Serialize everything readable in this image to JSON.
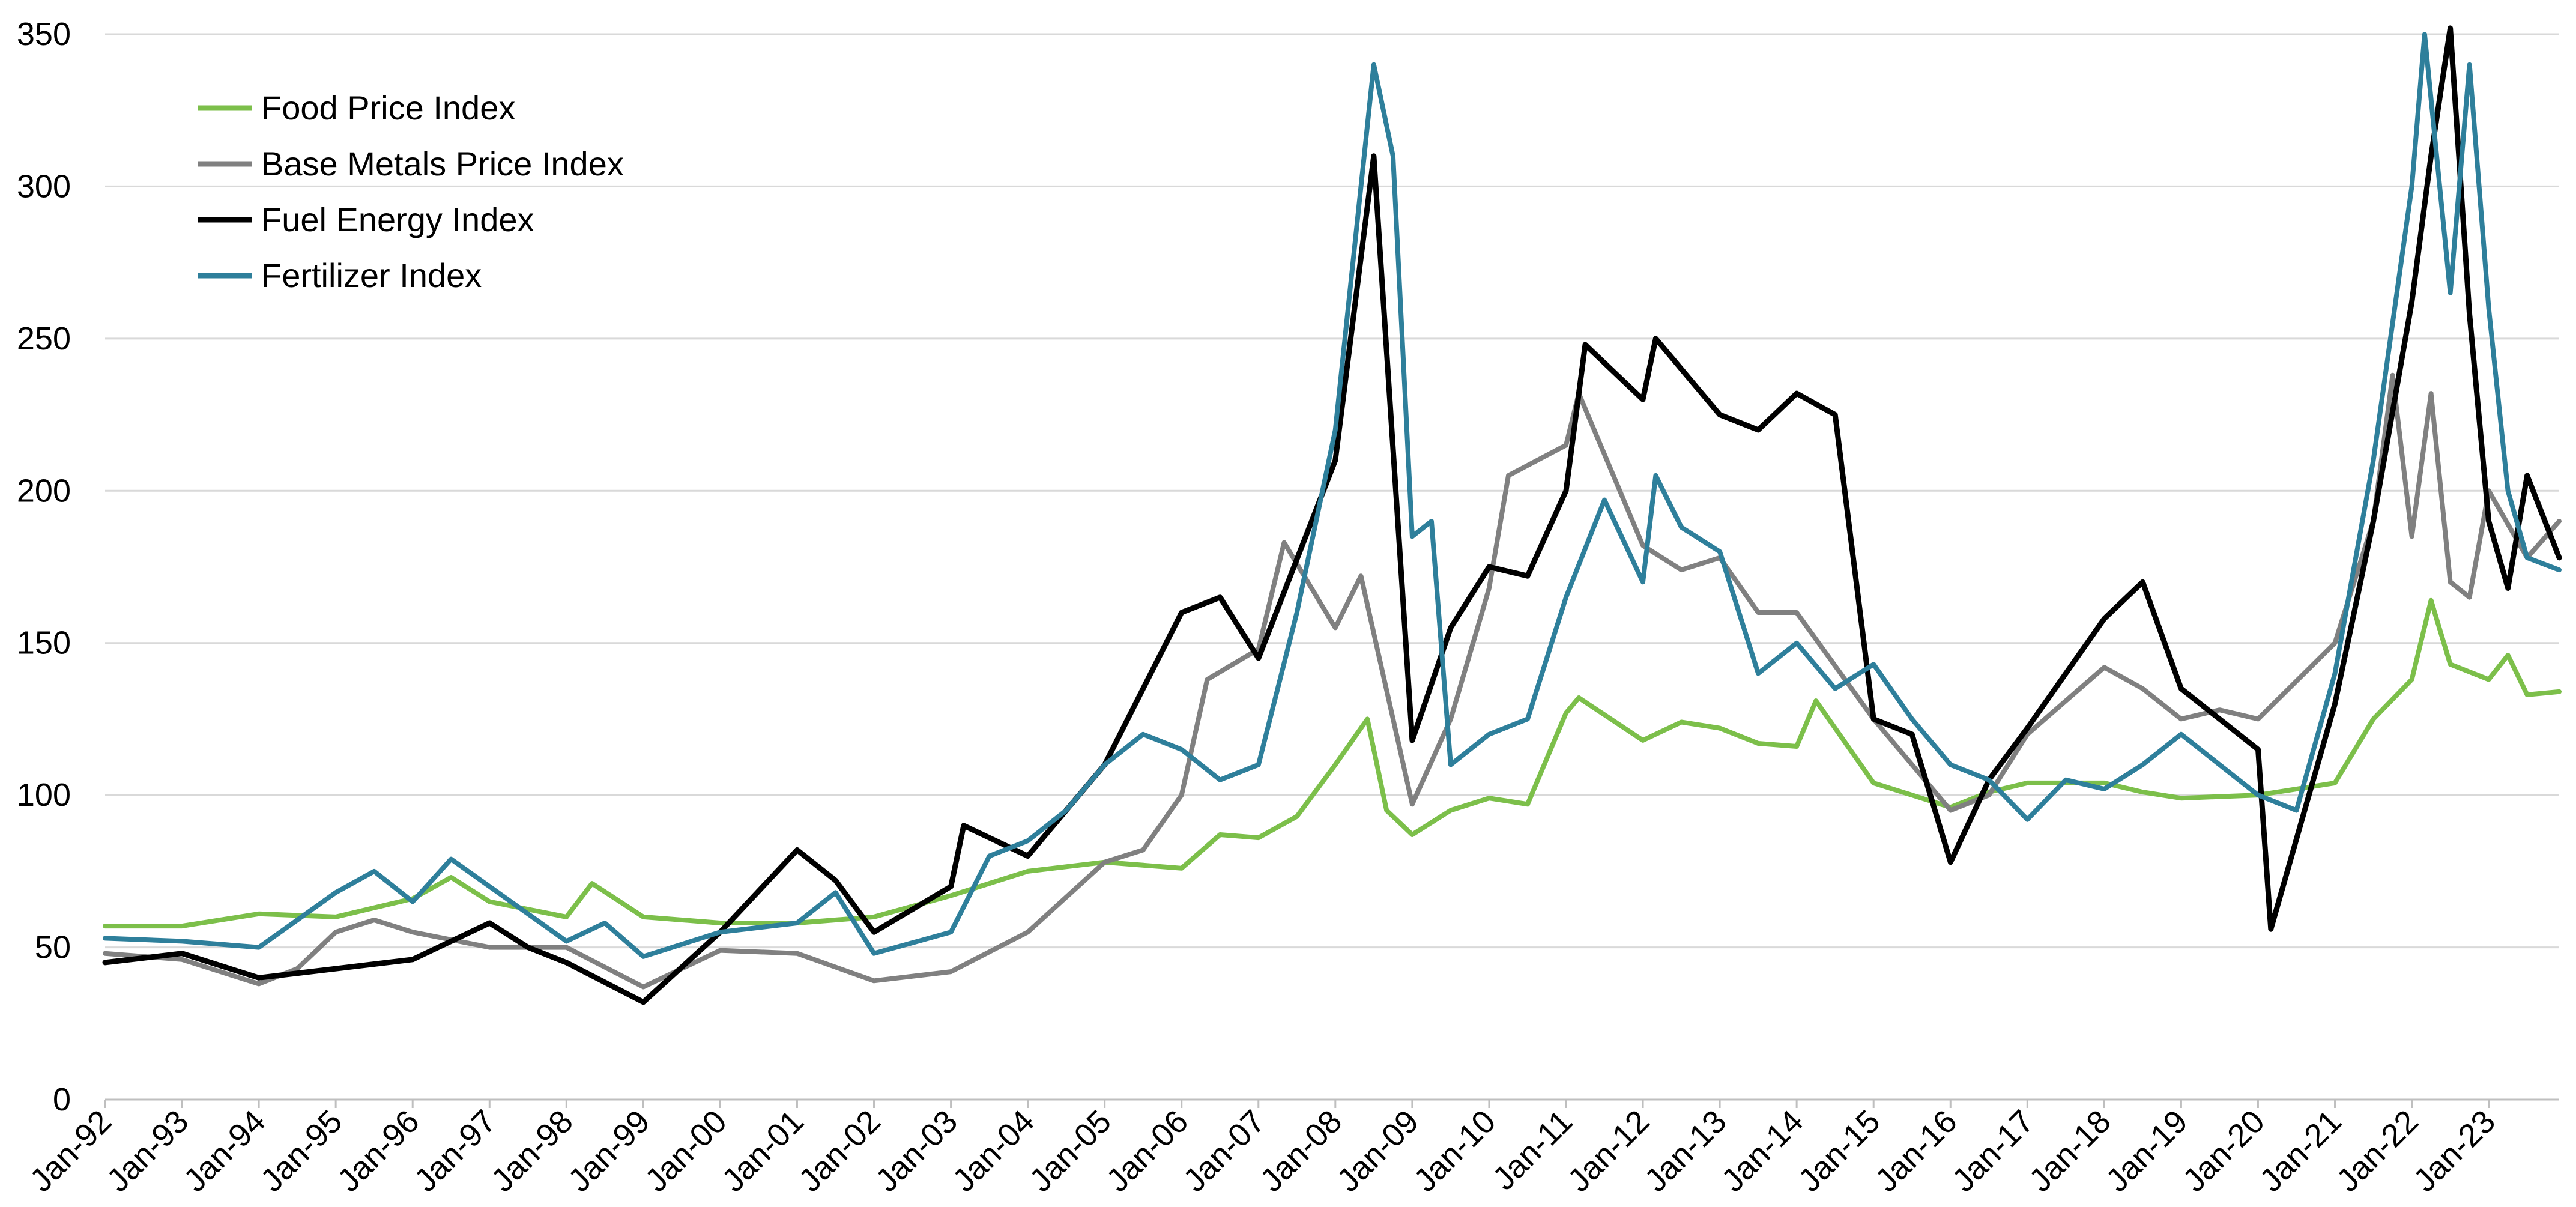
{
  "chart_data": {
    "type": "line",
    "title": "",
    "xlabel": "",
    "ylabel": "",
    "ylim": [
      0,
      350
    ],
    "yticks": [
      0,
      50,
      100,
      150,
      200,
      250,
      300,
      350
    ],
    "x_tick_labels": [
      "Jan-92",
      "Jan-93",
      "Jan-94",
      "Jan-95",
      "Jan-96",
      "Jan-97",
      "Jan-98",
      "Jan-99",
      "Jan-00",
      "Jan-01",
      "Jan-02",
      "Jan-03",
      "Jan-04",
      "Jan-05",
      "Jan-06",
      "Jan-07",
      "Jan-08",
      "Jan-09",
      "Jan-10",
      "Jan-11",
      "Jan-12",
      "Jan-13",
      "Jan-14",
      "Jan-15",
      "Jan-16",
      "Jan-17",
      "Jan-18",
      "Jan-19",
      "Jan-20",
      "Jan-21",
      "Jan-22",
      "Jan-23"
    ],
    "x_range": [
      "Jan-92",
      "Dec-23"
    ],
    "grid": "horizontal",
    "legend_position": "top-left",
    "series": [
      {
        "name": "Food Price Index",
        "color": "#7cbf4a",
        "points": [
          [
            "Jan-92",
            57
          ],
          [
            "Jan-93",
            57
          ],
          [
            "Jan-94",
            61
          ],
          [
            "Jan-95",
            60
          ],
          [
            "Jan-96",
            66
          ],
          [
            "Jul-96",
            73
          ],
          [
            "Jan-97",
            65
          ],
          [
            "Jan-98",
            60
          ],
          [
            "May-98",
            71
          ],
          [
            "Jan-99",
            60
          ],
          [
            "Jan-00",
            58
          ],
          [
            "Jan-01",
            58
          ],
          [
            "Jan-02",
            60
          ],
          [
            "Jan-03",
            67
          ],
          [
            "Jan-04",
            75
          ],
          [
            "Jan-05",
            78
          ],
          [
            "Jan-06",
            76
          ],
          [
            "Jul-06",
            87
          ],
          [
            "Jan-07",
            86
          ],
          [
            "Jul-07",
            93
          ],
          [
            "Jan-08",
            110
          ],
          [
            "Jun-08",
            125
          ],
          [
            "Sep-08",
            95
          ],
          [
            "Jan-09",
            87
          ],
          [
            "Jul-09",
            95
          ],
          [
            "Jan-10",
            99
          ],
          [
            "Jul-10",
            97
          ],
          [
            "Jan-11",
            127
          ],
          [
            "Mar-11",
            132
          ],
          [
            "Jan-12",
            118
          ],
          [
            "Jul-12",
            124
          ],
          [
            "Jan-13",
            122
          ],
          [
            "Jul-13",
            117
          ],
          [
            "Jan-14",
            116
          ],
          [
            "Apr-14",
            131
          ],
          [
            "Jan-15",
            104
          ],
          [
            "Jan-16",
            96
          ],
          [
            "Jul-16",
            101
          ],
          [
            "Jan-17",
            104
          ],
          [
            "Jan-18",
            104
          ],
          [
            "Jul-18",
            101
          ],
          [
            "Jan-19",
            99
          ],
          [
            "Jan-20",
            100
          ],
          [
            "Jan-21",
            104
          ],
          [
            "Jul-21",
            125
          ],
          [
            "Jan-22",
            138
          ],
          [
            "Apr-22",
            164
          ],
          [
            "Jul-22",
            143
          ],
          [
            "Jan-23",
            138
          ],
          [
            "Apr-23",
            146
          ],
          [
            "Jul-23",
            133
          ],
          [
            "Dec-23",
            134
          ]
        ]
      },
      {
        "name": "Base Metals Price Index",
        "color": "#808080",
        "points": [
          [
            "Jan-92",
            48
          ],
          [
            "Jan-93",
            46
          ],
          [
            "Jan-94",
            38
          ],
          [
            "Jul-94",
            43
          ],
          [
            "Jan-95",
            55
          ],
          [
            "Jul-95",
            59
          ],
          [
            "Jan-96",
            55
          ],
          [
            "Jan-97",
            50
          ],
          [
            "Jan-98",
            50
          ],
          [
            "Jan-99",
            37
          ],
          [
            "Jan-00",
            49
          ],
          [
            "Jan-01",
            48
          ],
          [
            "Jan-02",
            39
          ],
          [
            "Jan-03",
            42
          ],
          [
            "Jan-04",
            55
          ],
          [
            "Jan-05",
            78
          ],
          [
            "Jul-05",
            82
          ],
          [
            "Jan-06",
            100
          ],
          [
            "May-06",
            138
          ],
          [
            "Jan-07",
            148
          ],
          [
            "May-07",
            183
          ],
          [
            "Jan-08",
            155
          ],
          [
            "May-08",
            172
          ],
          [
            "Jan-09",
            97
          ],
          [
            "Jul-09",
            125
          ],
          [
            "Jan-10",
            168
          ],
          [
            "Apr-10",
            205
          ],
          [
            "Jan-11",
            215
          ],
          [
            "Mar-11",
            232
          ],
          [
            "Jan-12",
            182
          ],
          [
            "Jul-12",
            174
          ],
          [
            "Jan-13",
            178
          ],
          [
            "Jul-13",
            160
          ],
          [
            "Jan-14",
            160
          ],
          [
            "Jan-15",
            125
          ],
          [
            "Jan-16",
            95
          ],
          [
            "Jul-16",
            100
          ],
          [
            "Jan-17",
            120
          ],
          [
            "Jan-18",
            142
          ],
          [
            "Jul-18",
            135
          ],
          [
            "Jan-19",
            125
          ],
          [
            "Jul-19",
            128
          ],
          [
            "Jan-20",
            125
          ],
          [
            "Jan-21",
            150
          ],
          [
            "Jul-21",
            190
          ],
          [
            "Oct-21",
            238
          ],
          [
            "Jan-22",
            185
          ],
          [
            "Apr-22",
            232
          ],
          [
            "Jul-22",
            170
          ],
          [
            "Oct-22",
            165
          ],
          [
            "Jan-23",
            200
          ],
          [
            "Jul-23",
            178
          ],
          [
            "Dec-23",
            190
          ]
        ]
      },
      {
        "name": "Fuel Energy Index",
        "color": "#000000",
        "points": [
          [
            "Jan-92",
            45
          ],
          [
            "Jan-93",
            48
          ],
          [
            "Jan-94",
            40
          ],
          [
            "Jan-95",
            43
          ],
          [
            "Jan-96",
            46
          ],
          [
            "Jan-97",
            58
          ],
          [
            "Jul-97",
            50
          ],
          [
            "Jan-98",
            45
          ],
          [
            "Jan-99",
            32
          ],
          [
            "Jan-00",
            55
          ],
          [
            "Jan-01",
            82
          ],
          [
            "Jul-01",
            72
          ],
          [
            "Jan-02",
            55
          ],
          [
            "Jan-03",
            70
          ],
          [
            "Mar-03",
            90
          ],
          [
            "Jan-04",
            80
          ],
          [
            "Jan-05",
            110
          ],
          [
            "Jan-06",
            160
          ],
          [
            "Jul-06",
            165
          ],
          [
            "Jan-07",
            145
          ],
          [
            "Jan-08",
            210
          ],
          [
            "Jul-08",
            310
          ],
          [
            "Jan-09",
            118
          ],
          [
            "Jul-09",
            155
          ],
          [
            "Jan-10",
            175
          ],
          [
            "Jul-10",
            172
          ],
          [
            "Jan-11",
            200
          ],
          [
            "Apr-11",
            248
          ],
          [
            "Jan-12",
            230
          ],
          [
            "Mar-12",
            250
          ],
          [
            "Jan-13",
            225
          ],
          [
            "Jul-13",
            220
          ],
          [
            "Jan-14",
            232
          ],
          [
            "Jul-14",
            225
          ],
          [
            "Jan-15",
            125
          ],
          [
            "Jul-15",
            120
          ],
          [
            "Jan-16",
            78
          ],
          [
            "Jul-16",
            105
          ],
          [
            "Jan-17",
            122
          ],
          [
            "Jan-18",
            158
          ],
          [
            "Jul-18",
            170
          ],
          [
            "Jan-19",
            135
          ],
          [
            "Jul-19",
            125
          ],
          [
            "Jan-20",
            115
          ],
          [
            "Mar-20",
            56
          ],
          [
            "Jan-21",
            130
          ],
          [
            "Jul-21",
            190
          ],
          [
            "Jan-22",
            262
          ],
          [
            "Apr-22",
            310
          ],
          [
            "Jul-22",
            352
          ],
          [
            "Oct-22",
            258
          ],
          [
            "Jan-23",
            190
          ],
          [
            "Apr-23",
            168
          ],
          [
            "Jul-23",
            205
          ],
          [
            "Dec-23",
            178
          ]
        ]
      },
      {
        "name": "Fertilizer Index",
        "color": "#2e7f9b",
        "points": [
          [
            "Jan-92",
            53
          ],
          [
            "Jan-93",
            52
          ],
          [
            "Jan-94",
            50
          ],
          [
            "Jan-95",
            68
          ],
          [
            "Jul-95",
            75
          ],
          [
            "Jan-96",
            65
          ],
          [
            "Jul-96",
            79
          ],
          [
            "Jan-97",
            70
          ],
          [
            "Jan-98",
            52
          ],
          [
            "Jul-98",
            58
          ],
          [
            "Jan-99",
            47
          ],
          [
            "Jan-00",
            55
          ],
          [
            "Jan-01",
            58
          ],
          [
            "Jul-01",
            68
          ],
          [
            "Jan-02",
            48
          ],
          [
            "Jan-03",
            55
          ],
          [
            "Jul-03",
            80
          ],
          [
            "Jan-04",
            85
          ],
          [
            "Jul-04",
            95
          ],
          [
            "Jan-05",
            110
          ],
          [
            "Jul-05",
            120
          ],
          [
            "Jan-06",
            115
          ],
          [
            "Jul-06",
            105
          ],
          [
            "Jan-07",
            110
          ],
          [
            "Jul-07",
            160
          ],
          [
            "Jan-08",
            220
          ],
          [
            "Jul-08",
            340
          ],
          [
            "Oct-08",
            310
          ],
          [
            "Jan-09",
            185
          ],
          [
            "Apr-09",
            190
          ],
          [
            "Jul-09",
            110
          ],
          [
            "Jan-10",
            120
          ],
          [
            "Jul-10",
            125
          ],
          [
            "Jan-11",
            165
          ],
          [
            "Jul-11",
            197
          ],
          [
            "Jan-12",
            170
          ],
          [
            "Mar-12",
            205
          ],
          [
            "Jul-12",
            188
          ],
          [
            "Jan-13",
            180
          ],
          [
            "Jul-13",
            140
          ],
          [
            "Jan-14",
            150
          ],
          [
            "Jul-14",
            135
          ],
          [
            "Jan-15",
            143
          ],
          [
            "Jul-15",
            125
          ],
          [
            "Jan-16",
            110
          ],
          [
            "Jul-16",
            105
          ],
          [
            "Jan-17",
            92
          ],
          [
            "Jul-17",
            105
          ],
          [
            "Jan-18",
            102
          ],
          [
            "Jul-18",
            110
          ],
          [
            "Jan-19",
            120
          ],
          [
            "Jul-19",
            110
          ],
          [
            "Jan-20",
            100
          ],
          [
            "Jul-20",
            95
          ],
          [
            "Jan-21",
            140
          ],
          [
            "Jul-21",
            210
          ],
          [
            "Jan-22",
            300
          ],
          [
            "Mar-22",
            350
          ],
          [
            "Jul-22",
            265
          ],
          [
            "Oct-22",
            340
          ],
          [
            "Jan-23",
            260
          ],
          [
            "Apr-23",
            200
          ],
          [
            "Jul-23",
            178
          ],
          [
            "Dec-23",
            174
          ]
        ]
      }
    ]
  }
}
